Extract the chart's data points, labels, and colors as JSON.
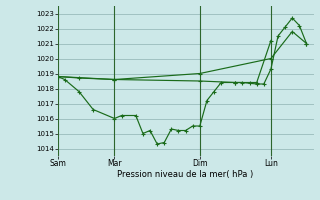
{
  "xlabel": "Pression niveau de la mer( hPa )",
  "ylim": [
    1013.5,
    1023.5
  ],
  "yticks": [
    1014,
    1015,
    1016,
    1017,
    1018,
    1019,
    1020,
    1021,
    1022,
    1023
  ],
  "bg_color": "#cce8e8",
  "grid_color": "#99bbbb",
  "line_color": "#1a6b1a",
  "vline_color": "#2d662d",
  "xtick_labels": [
    "Sam",
    "Mar",
    "Dim",
    "Lun"
  ],
  "xtick_positions": [
    0,
    4,
    10,
    15
  ],
  "xlim": [
    0,
    18
  ],
  "series1_x": [
    0,
    0.5,
    1.5,
    2.5,
    4,
    4.5,
    5.5,
    6,
    6.5,
    7,
    7.5,
    8,
    8.5,
    9,
    9.5,
    10,
    10.5,
    11,
    11.5,
    12.5,
    13,
    14,
    14.5,
    15,
    15.5,
    16,
    16.5,
    17,
    17.5
  ],
  "series1_y": [
    1018.8,
    1018.6,
    1017.8,
    1016.6,
    1016.0,
    1016.2,
    1016.2,
    1015.0,
    1015.2,
    1014.3,
    1014.4,
    1015.3,
    1015.2,
    1015.2,
    1015.5,
    1015.5,
    1017.2,
    1017.8,
    1018.4,
    1018.4,
    1018.4,
    1018.3,
    1018.3,
    1019.3,
    1021.5,
    1022.1,
    1022.7,
    1022.2,
    1021.0
  ],
  "series2_x": [
    0,
    4,
    10,
    15,
    16.5,
    17.5
  ],
  "series2_y": [
    1018.8,
    1018.6,
    1019.0,
    1020.0,
    1021.8,
    1021.0
  ],
  "series3_x": [
    0,
    1.5,
    4,
    10,
    12.5,
    13.5,
    14,
    15
  ],
  "series3_y": [
    1018.8,
    1018.7,
    1018.6,
    1018.5,
    1018.4,
    1018.4,
    1018.4,
    1021.2
  ],
  "figsize": [
    3.2,
    2.0
  ],
  "dpi": 100
}
